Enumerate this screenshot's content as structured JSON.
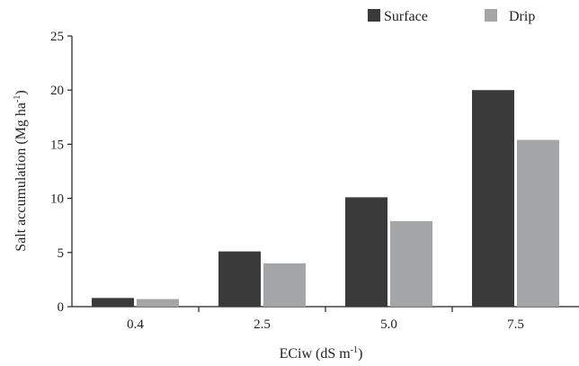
{
  "chart_data": {
    "type": "bar",
    "categories": [
      "0.4",
      "2.5",
      "5.0",
      "7.5"
    ],
    "series": [
      {
        "name": "Surface",
        "values": [
          0.8,
          5.1,
          10.1,
          20.0
        ],
        "color": "#3a3a3a"
      },
      {
        "name": "Drip",
        "values": [
          0.7,
          4.0,
          7.9,
          15.4
        ],
        "color": "#a3a5a7"
      }
    ],
    "ylim": [
      0,
      25
    ],
    "yticks": [
      "0",
      "5",
      "10",
      "15",
      "20",
      "25"
    ],
    "ylabel": "Salt accumulation (Mg ha",
    "ylabel_sup": "-1",
    "ylabel_end": ")",
    "xlabel": "ECiw (dS m",
    "xlabel_sup": "-1",
    "xlabel_end": ")",
    "legend_position": "top-right",
    "grid": false
  }
}
